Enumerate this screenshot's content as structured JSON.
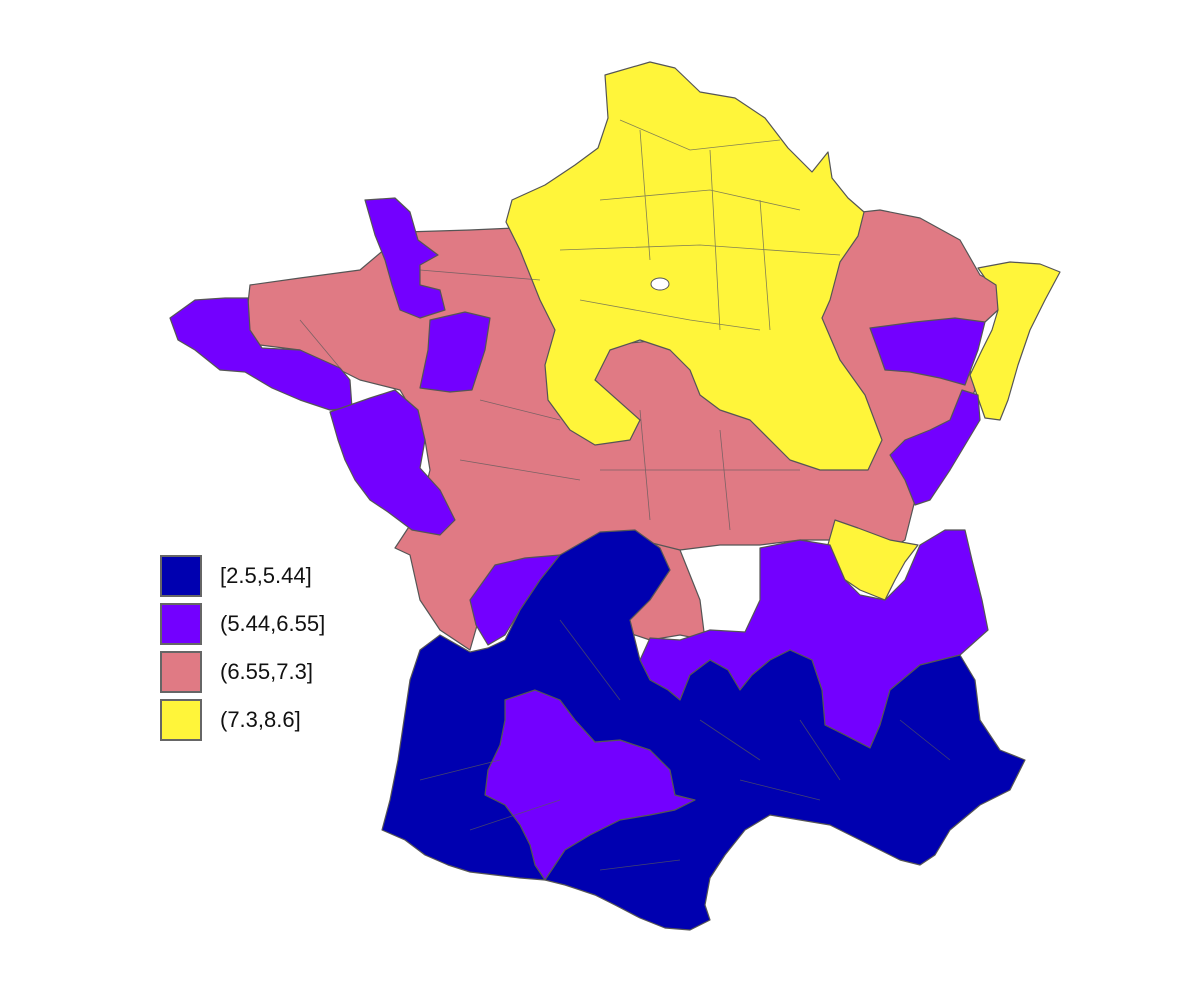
{
  "map": {
    "type": "choropleth",
    "region": "France",
    "regions": [
      {
        "id": "north",
        "class_index": 3
      },
      {
        "id": "northeast-alsace",
        "class_index": 3
      },
      {
        "id": "savoie-north",
        "class_index": 3
      },
      {
        "id": "northwest-central",
        "class_index": 2
      },
      {
        "id": "lorraine",
        "class_index": 2
      },
      {
        "id": "center-west",
        "class_index": 2
      },
      {
        "id": "brittany-west",
        "class_index": 1
      },
      {
        "id": "normandy-manche",
        "class_index": 1
      },
      {
        "id": "loire-atlantique",
        "class_index": 1
      },
      {
        "id": "sarthe",
        "class_index": 1
      },
      {
        "id": "franche-comte",
        "class_index": 1
      },
      {
        "id": "doubs-jura",
        "class_index": 1
      },
      {
        "id": "dordogne",
        "class_index": 1
      },
      {
        "id": "auvergne-lozere",
        "class_index": 1
      },
      {
        "id": "rhone-alpes",
        "class_index": 1
      },
      {
        "id": "tarn-midi",
        "class_index": 1
      },
      {
        "id": "southwest",
        "class_index": 0
      },
      {
        "id": "limousin",
        "class_index": 0
      },
      {
        "id": "south-east",
        "class_index": 0
      }
    ]
  },
  "legend": {
    "items": [
      {
        "label": "[2.5,5.44]",
        "color": "#0000b0"
      },
      {
        "label": "(5.44,6.55]",
        "color": "#7300ff"
      },
      {
        "label": "(6.55,7.3]",
        "color": "#e07a84"
      },
      {
        "label": "(7.3,8.6]",
        "color": "#fff53a"
      }
    ]
  }
}
